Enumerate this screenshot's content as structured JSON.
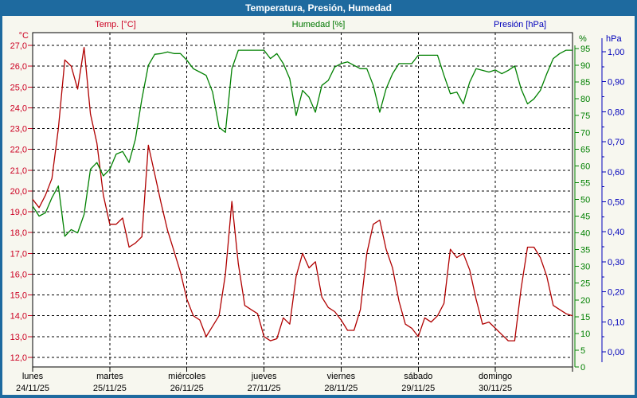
{
  "window": {
    "title": "Temperatura, Presión, Humedad"
  },
  "header": {
    "temp_label": "Temp. [°C]",
    "humidity_label": "Humedad [%]",
    "pressure_label": "Presión [hPa]"
  },
  "colors": {
    "titlebar_bg": "#1e6a9f",
    "frame": "#1e6a9f",
    "background": "#f7f7ef",
    "plot_background": "#ffffff",
    "grid": "#000000",
    "temp": "#b00000",
    "temp_labels": "#cc0022",
    "humidity": "#008000",
    "pressure": "#0000bb",
    "day_labels": "#000000"
  },
  "chart_data": {
    "type": "line",
    "title": "Temperatura, Presión, Humedad",
    "x_unit": "hours",
    "x_range_hours": [
      0,
      168
    ],
    "sample_interval_hours": 2,
    "grid": "dashed",
    "x_days": [
      {
        "name": "lunes",
        "date": "24/11/25"
      },
      {
        "name": "martes",
        "date": "25/11/25"
      },
      {
        "name": "miércoles",
        "date": "26/11/25"
      },
      {
        "name": "jueves",
        "date": "27/11/25"
      },
      {
        "name": "viernes",
        "date": "28/11/25"
      },
      {
        "name": "sábado",
        "date": "29/11/25"
      },
      {
        "name": "domingo",
        "date": "30/11/25"
      }
    ],
    "axes": {
      "temp": {
        "unit": "°C",
        "side": "left",
        "min": 12,
        "max": 27,
        "tick_step": 1,
        "color": "#cc0022",
        "tick_labels": [
          "27,0",
          "26,0",
          "25,0",
          "24,0",
          "23,0",
          "22,0",
          "21,0",
          "20,0",
          "19,0",
          "18,0",
          "17,0",
          "16,0",
          "15,0",
          "14,0",
          "13,0",
          "12,0"
        ]
      },
      "humidity": {
        "unit": "%",
        "side": "right",
        "min": 0,
        "max": 95,
        "tick_step": 5,
        "color": "#008000",
        "tick_labels": [
          "95",
          "90",
          "85",
          "80",
          "75",
          "70",
          "65",
          "60",
          "55",
          "50",
          "45",
          "40",
          "35",
          "30",
          "25",
          "20",
          "15",
          "10",
          "5",
          "0"
        ]
      },
      "pressure": {
        "unit": "hPa",
        "side": "right-outer",
        "min": 0,
        "max": 1,
        "tick_step": 0.1,
        "color": "#0000bb",
        "tick_labels": [
          "1,00",
          "0,90",
          "0,80",
          "0,70",
          "0,60",
          "0,50",
          "0,40",
          "0,30",
          "0,20",
          "0,10",
          "0,00"
        ],
        "note_series_visible": false
      }
    },
    "series": [
      {
        "name": "Temp. [°C]",
        "axis": "temp",
        "color": "#b00000",
        "values": [
          19.6,
          19.2,
          19.8,
          20.6,
          23.0,
          26.3,
          26.0,
          24.9,
          26.9,
          23.7,
          22.3,
          19.8,
          18.4,
          18.4,
          18.7,
          17.3,
          17.5,
          17.8,
          22.2,
          20.8,
          19.4,
          18.1,
          17.1,
          16.1,
          14.8,
          14.0,
          13.8,
          13.0,
          13.5,
          14.0,
          16.0,
          19.5,
          16.5,
          14.5,
          14.3,
          14.1,
          13.0,
          12.8,
          12.9,
          13.9,
          13.6,
          15.9,
          17.0,
          16.3,
          16.6,
          14.9,
          14.4,
          14.2,
          13.8,
          13.3,
          13.3,
          14.3,
          17.0,
          18.4,
          18.6,
          17.2,
          16.3,
          14.7,
          13.6,
          13.4,
          13.0,
          13.9,
          13.7,
          14.0,
          14.6,
          17.2,
          16.8,
          17.0,
          16.2,
          14.8,
          13.6,
          13.7,
          13.4,
          13.1,
          12.8,
          12.8,
          15.3,
          17.3,
          17.3,
          16.8,
          15.9,
          14.5,
          14.3,
          14.1,
          14.0
        ]
      },
      {
        "name": "Humedad [%]",
        "axis": "humidity",
        "color": "#008000",
        "values": [
          48,
          45,
          46,
          50.5,
          54,
          39,
          41,
          40,
          45.5,
          59,
          61,
          57,
          59,
          63.5,
          64.3,
          61,
          68,
          80,
          90,
          93.3,
          93.5,
          94,
          93.5,
          93.5,
          91.5,
          89,
          88,
          87,
          82,
          71.5,
          70,
          89,
          94.5,
          94.5,
          94.5,
          94.5,
          94.5,
          92,
          93.5,
          90.5,
          86,
          75,
          82.5,
          80.5,
          76,
          84,
          85.5,
          89.5,
          90.5,
          91,
          90,
          89,
          89,
          84,
          76,
          83,
          87.5,
          90.5,
          90.5,
          90.5,
          93,
          93,
          93,
          93,
          87,
          81.5,
          82,
          78.5,
          85,
          89,
          88.5,
          88,
          88.6,
          87.5,
          88.5,
          89.8,
          83,
          78.5,
          80,
          82.5,
          87.5,
          92,
          93.5,
          94.5,
          94.5
        ]
      }
    ]
  }
}
